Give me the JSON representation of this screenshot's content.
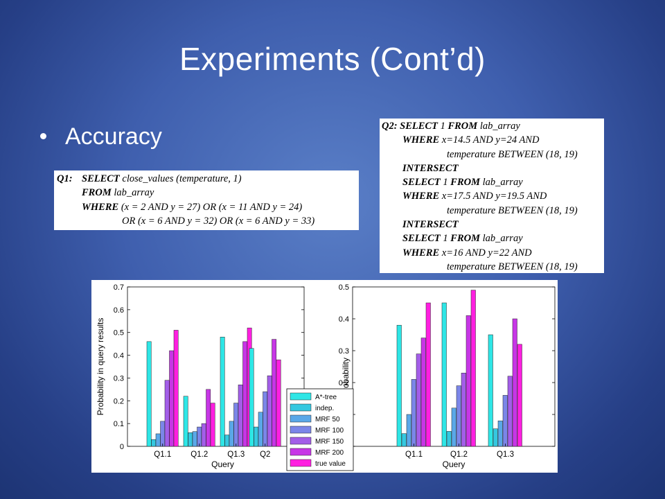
{
  "slide": {
    "title": "Experiments (Cont’d)",
    "bullet": "Accuracy"
  },
  "q1": {
    "lines": [
      {
        "label": "Q1:",
        "kw": "SELECT",
        "rest": "close_values (temperature, 1)"
      },
      {
        "label": "",
        "kw": "FROM",
        "rest": "lab_array"
      },
      {
        "label": "",
        "kw": "WHERE",
        "rest": "(x = 2 AND y = 27) OR (x = 11 AND y = 24)"
      },
      {
        "label": "",
        "kw": "",
        "rest": "OR (x = 6 AND y = 32) OR (x = 6 AND y = 33)"
      }
    ]
  },
  "q2": {
    "lines": [
      {
        "kw": "Q2: SELECT",
        "rest": "1",
        "kw2": "FROM",
        "rest2": "lab_array"
      },
      {
        "kw": "WHERE",
        "rest": "x=14.5 AND y=24 AND",
        "kw2": "",
        "rest2": ""
      },
      {
        "kw": "",
        "rest": "temperature BETWEEN (18, 19)",
        "kw2": "",
        "rest2": ""
      },
      {
        "kw": "INTERSECT",
        "rest": "",
        "kw2": "",
        "rest2": ""
      },
      {
        "kw": "SELECT",
        "rest": "1",
        "kw2": "FROM",
        "rest2": "lab_array"
      },
      {
        "kw": "WHERE",
        "rest": "x=17.5 AND y=19.5 AND",
        "kw2": "",
        "rest2": ""
      },
      {
        "kw": "",
        "rest": "temperature BETWEEN (18, 19)",
        "kw2": "",
        "rest2": ""
      },
      {
        "kw": "INTERSECT",
        "rest": "",
        "kw2": "",
        "rest2": ""
      },
      {
        "kw": "SELECT",
        "rest": "1",
        "kw2": "FROM",
        "rest2": "lab_array"
      },
      {
        "kw": "WHERE",
        "rest": "x=16 AND y=22 AND",
        "kw2": "",
        "rest2": ""
      },
      {
        "kw": "",
        "rest": "temperature BETWEEN (18, 19)",
        "kw2": "",
        "rest2": ""
      }
    ]
  },
  "chart_data": [
    {
      "type": "bar",
      "categories": [
        "Q1.1",
        "Q1.2",
        "Q1.3",
        "Q2"
      ],
      "xlabel": "Query",
      "ylabel": "Probability in query results",
      "ylim": [
        0,
        0.7
      ],
      "yticks": [
        "0",
        "0.1",
        "0.2",
        "0.3",
        "0.4",
        "0.5",
        "0.6",
        "0.7"
      ],
      "legend_position": "bottom-right",
      "series": [
        {
          "name": "A*-tree",
          "color": "#2ee6e6",
          "values": [
            0.46,
            0.22,
            0.48,
            0.43
          ]
        },
        {
          "name": "indep.",
          "color": "#35c8e0",
          "values": [
            0.03,
            0.06,
            0.05,
            0.085
          ]
        },
        {
          "name": "MRF 50",
          "color": "#5aa8e8",
          "values": [
            0.055,
            0.065,
            0.11,
            0.15
          ]
        },
        {
          "name": "MRF 100",
          "color": "#7b86e8",
          "values": [
            0.11,
            0.085,
            0.19,
            0.24
          ]
        },
        {
          "name": "MRF 150",
          "color": "#a35ee8",
          "values": [
            0.29,
            0.1,
            0.27,
            0.31
          ]
        },
        {
          "name": "MRF 200",
          "color": "#c736e6",
          "values": [
            0.42,
            0.25,
            0.46,
            0.47
          ]
        },
        {
          "name": "true value",
          "color": "#ff1fe0",
          "values": [
            0.51,
            0.19,
            0.52,
            0.38
          ]
        }
      ]
    },
    {
      "type": "bar",
      "categories": [
        "Q1.1",
        "Q1.2",
        "Q1.3"
      ],
      "xlabel": "Query",
      "ylabel": "Probability",
      "ylim": [
        0,
        0.5
      ],
      "yticks": [
        "0",
        "0.1",
        "0.2",
        "0.3",
        "0.4",
        "0.5"
      ],
      "series": [
        {
          "name": "A*-tree",
          "color": "#2ee6e6",
          "values": [
            0.38,
            0.45,
            0.35
          ]
        },
        {
          "name": "indep.",
          "color": "#35c8e0",
          "values": [
            0.04,
            0.047,
            0.055
          ]
        },
        {
          "name": "MRF 50",
          "color": "#5aa8e8",
          "values": [
            0.1,
            0.12,
            0.08
          ]
        },
        {
          "name": "MRF 100",
          "color": "#7b86e8",
          "values": [
            0.21,
            0.19,
            0.16
          ]
        },
        {
          "name": "MRF 150",
          "color": "#a35ee8",
          "values": [
            0.29,
            0.23,
            0.22
          ]
        },
        {
          "name": "MRF 200",
          "color": "#c736e6",
          "values": [
            0.34,
            0.41,
            0.4
          ]
        },
        {
          "name": "true value",
          "color": "#ff1fe0",
          "values": [
            0.45,
            0.49,
            0.32
          ]
        }
      ]
    }
  ]
}
